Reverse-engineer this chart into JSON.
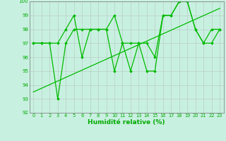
{
  "series1": {
    "x": [
      0,
      1,
      2,
      3,
      4,
      5,
      6,
      7,
      8,
      9,
      10,
      11,
      12,
      13,
      14,
      15,
      16,
      17,
      18,
      19,
      20,
      21,
      22,
      23
    ],
    "y": [
      97,
      97,
      97,
      97,
      98,
      99,
      96,
      98,
      98,
      98,
      99,
      97,
      95,
      97,
      97,
      96,
      99,
      99,
      100,
      100,
      98,
      97,
      98,
      98
    ]
  },
  "series2": {
    "x": [
      0,
      1,
      2,
      3,
      4,
      5,
      6,
      7,
      8,
      9,
      10,
      11,
      12,
      13,
      14,
      15,
      16,
      17,
      18,
      19,
      20,
      21,
      22,
      23
    ],
    "y": [
      97,
      97,
      97,
      93,
      97,
      98,
      98,
      98,
      98,
      98,
      95,
      97,
      97,
      97,
      95,
      95,
      99,
      99,
      100,
      100,
      98,
      97,
      97,
      98
    ]
  },
  "trend_x": [
    0,
    23
  ],
  "trend_y": [
    93.5,
    99.5
  ],
  "line_color": "#00bb00",
  "marker": "D",
  "marker_size": 1.8,
  "xlabel": "Humidité relative (%)",
  "ylim": [
    92,
    100
  ],
  "xlim": [
    -0.5,
    23.5
  ],
  "yticks": [
    92,
    93,
    94,
    95,
    96,
    97,
    98,
    99,
    100
  ],
  "xticks": [
    0,
    1,
    2,
    3,
    4,
    5,
    6,
    7,
    8,
    9,
    10,
    11,
    12,
    13,
    14,
    15,
    16,
    17,
    18,
    19,
    20,
    21,
    22,
    23
  ],
  "bg_color": "#c8f0e0",
  "grid_color": "#aaaaaa",
  "xlabel_color": "#00aa00",
  "tick_color": "#00aa00",
  "linewidth": 0.9,
  "trend_linewidth": 0.9
}
